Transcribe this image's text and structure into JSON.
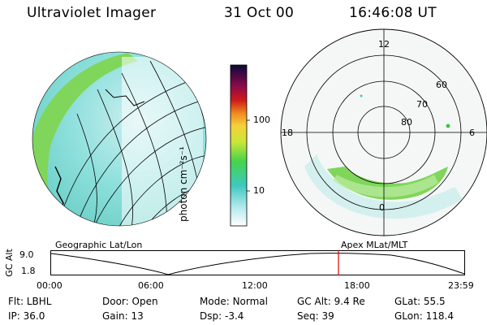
{
  "header": {
    "instrument": "Ultraviolet Imager",
    "date": "31 Oct 00",
    "time": "16:46:08 UT"
  },
  "colorbar": {
    "unit_label": "photon cm⁻²s⁻¹",
    "ticks": [
      "100",
      "10"
    ]
  },
  "polar": {
    "mlt_labels": [
      "12",
      "18",
      "6",
      "0"
    ],
    "mlat_labels": [
      "60",
      "70",
      "80"
    ]
  },
  "plot_labels": {
    "left": "Geographic Lat/Lon",
    "right": "Apex MLat/MLT"
  },
  "timeline": {
    "axis_label": "GC Alt",
    "y_top": "9.0",
    "y_bottom": "1.8",
    "x_ticks": [
      "00:00",
      "06:00",
      "12:00",
      "18:00",
      "23:59"
    ],
    "marker_color": "#e00000"
  },
  "info": {
    "row1": [
      {
        "label": "Flt:",
        "value": "LBHL"
      },
      {
        "label": "Door:",
        "value": "Open"
      },
      {
        "label": "Mode:",
        "value": "Normal"
      },
      {
        "label": "GC Alt:",
        "value": "9.4 Re"
      },
      {
        "label": "GLat:",
        "value": "55.5"
      }
    ],
    "row2": [
      {
        "label": "IP:",
        "value": "36.0"
      },
      {
        "label": "Gain:",
        "value": "13"
      },
      {
        "label": "Dsp:",
        "value": "-3.4"
      },
      {
        "label": "Seq:",
        "value": "39"
      },
      {
        "label": "GLon:",
        "value": "118.4"
      }
    ]
  }
}
